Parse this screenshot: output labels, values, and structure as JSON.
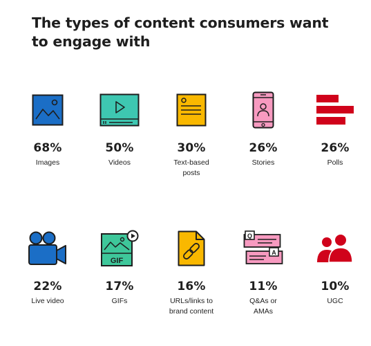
{
  "title_line1": "The types of content consumers want",
  "title_line2": "to engage with",
  "colors": {
    "blue": "#1b6ec6",
    "teal": "#3ec7b1",
    "yellow": "#f9b800",
    "pink": "#f79ac0",
    "red": "#d0021b",
    "green": "#3ec79a",
    "dark": "#1e1e1e"
  },
  "items": [
    {
      "value": "68%",
      "label": [
        "Images"
      ],
      "icon": "image-icon"
    },
    {
      "value": "50%",
      "label": [
        "Videos"
      ],
      "icon": "video-player-icon"
    },
    {
      "value": "30%",
      "label": [
        "Text-based",
        "posts"
      ],
      "icon": "document-icon"
    },
    {
      "value": "26%",
      "label": [
        "Stories"
      ],
      "icon": "phone-profile-icon"
    },
    {
      "value": "26%",
      "label": [
        "Polls"
      ],
      "icon": "poll-bars-icon"
    },
    {
      "value": "22%",
      "label": [
        "Live video"
      ],
      "icon": "camera-icon"
    },
    {
      "value": "17%",
      "label": [
        "GIFs"
      ],
      "icon": "gif-icon"
    },
    {
      "value": "16%",
      "label": [
        "URLs/links to",
        "brand content"
      ],
      "icon": "link-document-icon"
    },
    {
      "value": "11%",
      "label": [
        "Q&As or",
        "AMAs"
      ],
      "icon": "qa-chat-icon"
    },
    {
      "value": "10%",
      "label": [
        "UGC"
      ],
      "icon": "users-icon"
    }
  ]
}
